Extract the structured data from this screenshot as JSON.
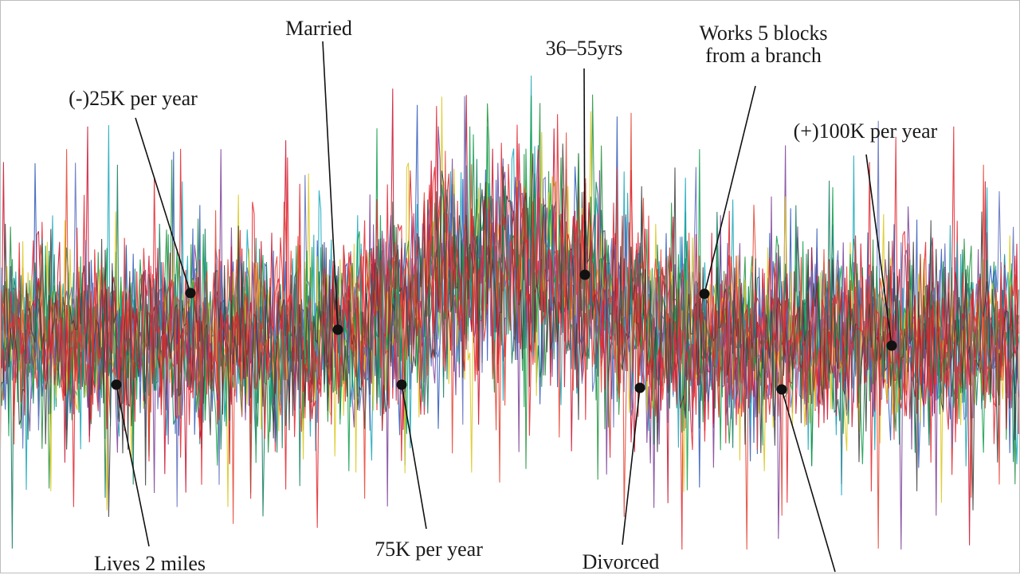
{
  "palette": [
    "#e3232c",
    "#1f8f3a",
    "#2b56b8",
    "#13a6b8",
    "#7a3d97",
    "#0e7a5e",
    "#d9c716",
    "#c8102e",
    "#5f6fbf",
    "#0d9c4a",
    "#e5412f",
    "#3c3c3c"
  ],
  "labels": [
    {
      "id": "married",
      "text": "Married"
    },
    {
      "id": "age",
      "text": "36–55yrs"
    },
    {
      "id": "works",
      "line1": "Works 5 blocks",
      "line2": "from a branch"
    },
    {
      "id": "low-income",
      "text": "(-)25K per year"
    },
    {
      "id": "high-income",
      "text": "(+)100K per year"
    },
    {
      "id": "lives",
      "text": "Lives 2 miles"
    },
    {
      "id": "mid-income",
      "text": "75K per year"
    },
    {
      "id": "divorced",
      "text": "Divorced"
    }
  ]
}
